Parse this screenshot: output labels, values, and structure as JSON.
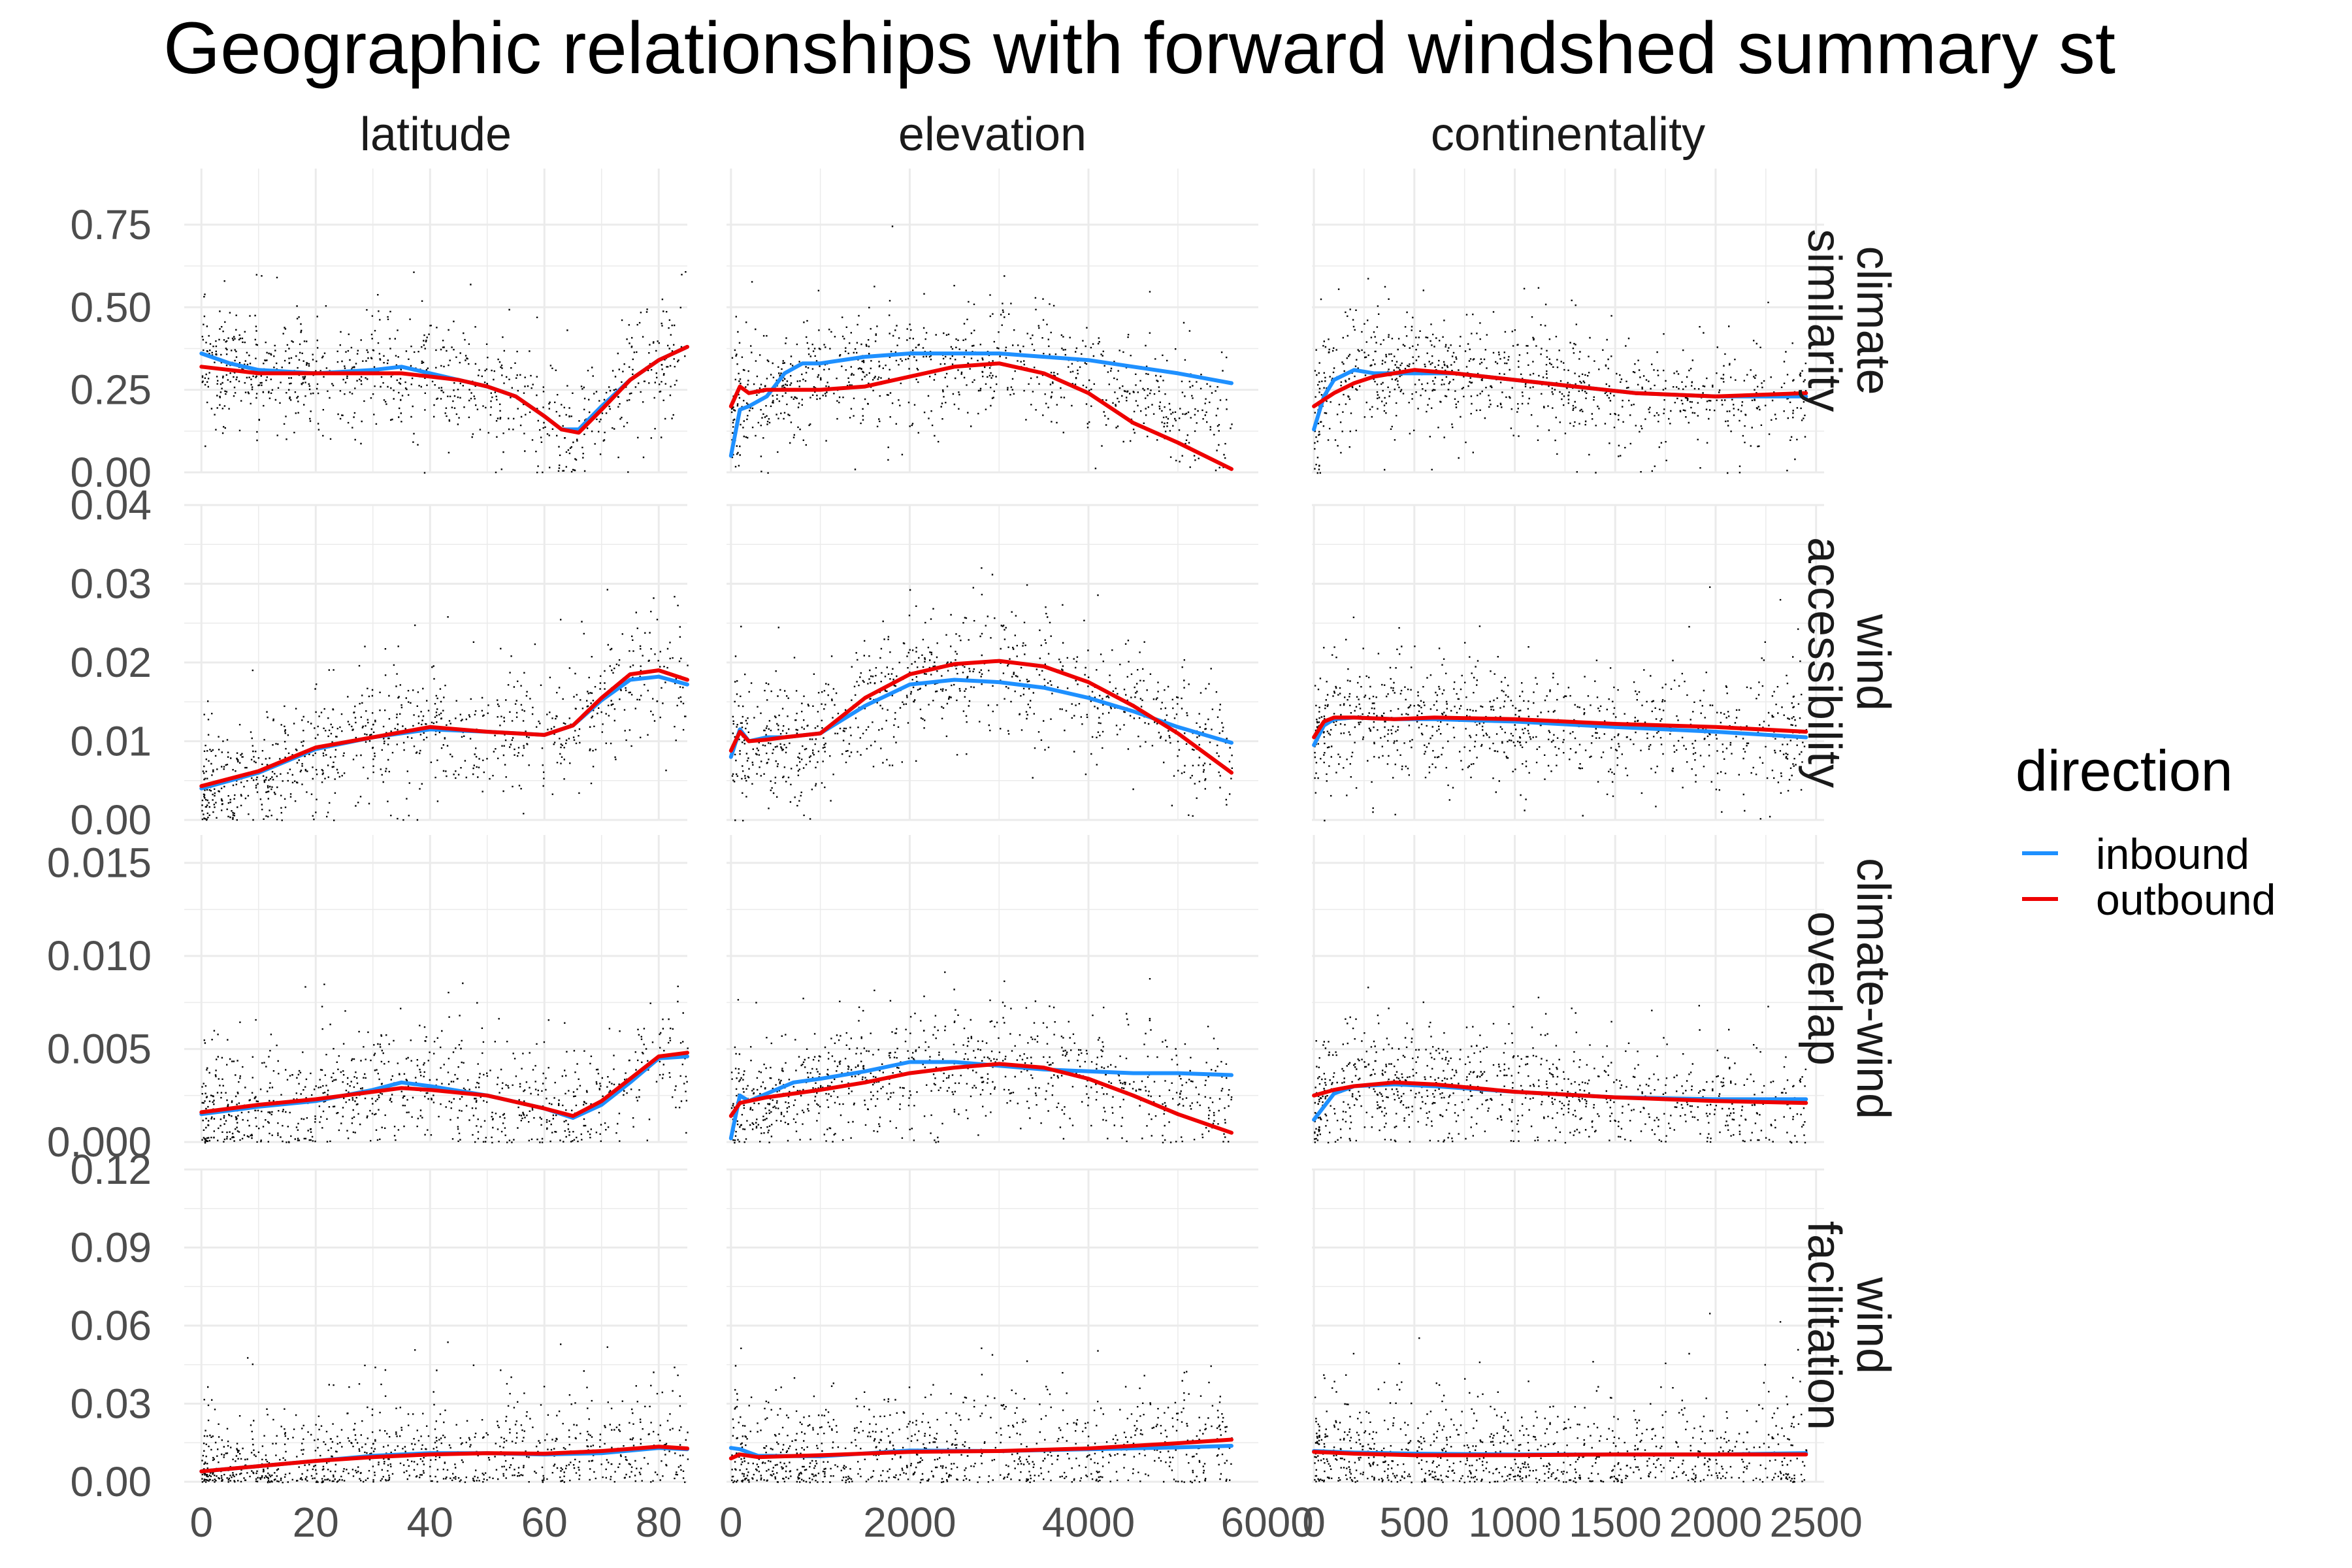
{
  "title": "Geographic relationships with forward windshed summary st",
  "legend": {
    "title": "direction",
    "items": [
      {
        "label": "inbound",
        "color": "#1E90FF"
      },
      {
        "label": "outbound",
        "color": "#EE0000"
      }
    ]
  },
  "columns": [
    {
      "label": "latitude",
      "xlim": [
        -3,
        85
      ],
      "ticks": [
        0,
        20,
        40,
        60,
        80
      ],
      "tick_labels": [
        "0",
        "20",
        "40",
        "60",
        "80"
      ]
    },
    {
      "label": "elevation",
      "xlim": [
        -50,
        5900
      ],
      "ticks": [
        0,
        2000,
        4000,
        6000
      ],
      "tick_labels": [
        "0",
        "2000",
        "4000",
        "6000"
      ]
    },
    {
      "label": "continentality",
      "xlim": [
        -10,
        2540
      ],
      "ticks": [
        0,
        500,
        1000,
        1500,
        2000,
        2500
      ],
      "tick_labels": [
        "0",
        "500",
        "1000",
        "1500",
        "2000",
        "2500"
      ]
    }
  ],
  "rows": [
    {
      "label_lines": [
        "climate",
        "similarity"
      ],
      "ylim": [
        0,
        0.92
      ],
      "ticks": [
        0,
        0.25,
        0.5,
        0.75
      ],
      "tick_labels": [
        "0.00",
        "0.25",
        "0.50",
        "0.75"
      ]
    },
    {
      "label_lines": [
        "wind",
        "accessibility"
      ],
      "ylim": [
        0,
        0.04
      ],
      "ticks": [
        0,
        0.01,
        0.02,
        0.03,
        0.04
      ],
      "tick_labels": [
        "0.00",
        "0.01",
        "0.02",
        "0.03",
        "0.04"
      ]
    },
    {
      "label_lines": [
        "climate-wind",
        "overlap"
      ],
      "ylim": [
        0,
        0.0165
      ],
      "ticks": [
        0,
        0.005,
        0.01,
        0.015
      ],
      "tick_labels": [
        "0.000",
        "0.005",
        "0.010",
        "0.015"
      ]
    },
    {
      "label_lines": [
        "wind",
        "facilitation"
      ],
      "ylim": [
        0,
        0.12
      ],
      "ticks": [
        0,
        0.03,
        0.06,
        0.09,
        0.12
      ],
      "tick_labels": [
        "0.00",
        "0.03",
        "0.06",
        "0.09",
        "0.12"
      ]
    }
  ],
  "chart_data": {
    "type": "scatter",
    "title": "Geographic relationships with forward windshed summary st",
    "grid": true,
    "legend_position": "right",
    "series_names": [
      "inbound",
      "outbound"
    ],
    "panels": [
      {
        "row": "climate similarity",
        "col": "latitude",
        "x": [
          0,
          5,
          10,
          20,
          30,
          35,
          40,
          45,
          50,
          55,
          60,
          63,
          66,
          70,
          75,
          80,
          85
        ],
        "inbound": [
          0.36,
          0.33,
          0.31,
          0.3,
          0.31,
          0.32,
          0.3,
          0.28,
          0.26,
          0.23,
          0.17,
          0.13,
          0.13,
          0.2,
          0.28,
          0.34,
          0.38
        ],
        "outbound": [
          0.32,
          0.31,
          0.3,
          0.3,
          0.3,
          0.3,
          0.29,
          0.28,
          0.26,
          0.23,
          0.17,
          0.13,
          0.12,
          0.19,
          0.28,
          0.34,
          0.38
        ]
      },
      {
        "row": "climate similarity",
        "col": "elevation",
        "x": [
          0,
          100,
          200,
          400,
          600,
          800,
          1000,
          1500,
          2000,
          2500,
          3000,
          3500,
          4000,
          4500,
          5000,
          5600
        ],
        "inbound": [
          0.05,
          0.19,
          0.2,
          0.23,
          0.3,
          0.33,
          0.33,
          0.35,
          0.36,
          0.36,
          0.36,
          0.35,
          0.34,
          0.32,
          0.3,
          0.27
        ],
        "outbound": [
          0.2,
          0.26,
          0.24,
          0.25,
          0.25,
          0.25,
          0.25,
          0.26,
          0.29,
          0.32,
          0.33,
          0.3,
          0.24,
          0.15,
          0.09,
          0.01
        ]
      },
      {
        "row": "climate similarity",
        "col": "continentality",
        "x": [
          0,
          50,
          100,
          200,
          300,
          500,
          700,
          1000,
          1300,
          1600,
          2000,
          2450
        ],
        "inbound": [
          0.13,
          0.23,
          0.28,
          0.31,
          0.3,
          0.3,
          0.3,
          0.28,
          0.26,
          0.24,
          0.23,
          0.23
        ],
        "outbound": [
          0.2,
          0.22,
          0.24,
          0.27,
          0.29,
          0.31,
          0.3,
          0.28,
          0.26,
          0.24,
          0.23,
          0.24
        ]
      },
      {
        "row": "wind accessibility",
        "col": "latitude",
        "x": [
          0,
          10,
          20,
          30,
          40,
          50,
          60,
          65,
          70,
          75,
          80,
          85
        ],
        "inbound": [
          0.004,
          0.006,
          0.009,
          0.0105,
          0.0115,
          0.0112,
          0.0108,
          0.012,
          0.0152,
          0.0178,
          0.0182,
          0.0172
        ],
        "outbound": [
          0.0043,
          0.0062,
          0.0092,
          0.0105,
          0.0118,
          0.0112,
          0.0108,
          0.012,
          0.0155,
          0.0185,
          0.019,
          0.0178
        ]
      },
      {
        "row": "wind accessibility",
        "col": "elevation",
        "x": [
          0,
          100,
          200,
          400,
          600,
          1000,
          1500,
          2000,
          2500,
          3000,
          3500,
          4000,
          4500,
          5000,
          5600
        ],
        "inbound": [
          0.008,
          0.0115,
          0.01,
          0.0105,
          0.0105,
          0.011,
          0.0145,
          0.0172,
          0.0178,
          0.0175,
          0.0168,
          0.0155,
          0.0138,
          0.0118,
          0.0098
        ],
        "outbound": [
          0.0088,
          0.0112,
          0.01,
          0.0102,
          0.0105,
          0.011,
          0.0155,
          0.0185,
          0.0198,
          0.0202,
          0.0195,
          0.0175,
          0.0145,
          0.011,
          0.006
        ]
      },
      {
        "row": "wind accessibility",
        "col": "continentality",
        "x": [
          0,
          50,
          100,
          200,
          400,
          600,
          1000,
          1500,
          2000,
          2450
        ],
        "inbound": [
          0.0095,
          0.012,
          0.0128,
          0.013,
          0.0128,
          0.0128,
          0.0125,
          0.0118,
          0.0112,
          0.0105
        ],
        "outbound": [
          0.0105,
          0.0125,
          0.013,
          0.013,
          0.0128,
          0.013,
          0.0128,
          0.0122,
          0.0118,
          0.0112
        ]
      },
      {
        "row": "climate-wind overlap",
        "col": "latitude",
        "x": [
          0,
          10,
          20,
          30,
          35,
          40,
          50,
          60,
          65,
          70,
          75,
          80,
          85
        ],
        "inbound": [
          0.0015,
          0.0019,
          0.0022,
          0.0028,
          0.0032,
          0.003,
          0.0025,
          0.0018,
          0.0013,
          0.002,
          0.0032,
          0.0045,
          0.0046
        ],
        "outbound": [
          0.0016,
          0.002,
          0.0023,
          0.0027,
          0.0029,
          0.0028,
          0.0025,
          0.0018,
          0.0014,
          0.0022,
          0.0034,
          0.0046,
          0.0048
        ]
      },
      {
        "row": "climate-wind overlap",
        "col": "elevation",
        "x": [
          0,
          100,
          200,
          400,
          700,
          1000,
          1500,
          2000,
          2500,
          3000,
          3500,
          4000,
          4500,
          5000,
          5600
        ],
        "inbound": [
          0.0002,
          0.0025,
          0.0022,
          0.0026,
          0.0032,
          0.0034,
          0.0038,
          0.0043,
          0.0043,
          0.0041,
          0.0039,
          0.0038,
          0.0037,
          0.0037,
          0.0036
        ],
        "outbound": [
          0.0014,
          0.0021,
          0.0022,
          0.0024,
          0.0026,
          0.0028,
          0.0032,
          0.0037,
          0.004,
          0.0042,
          0.004,
          0.0034,
          0.0025,
          0.0015,
          0.0005
        ]
      },
      {
        "row": "climate-wind overlap",
        "col": "continentality",
        "x": [
          0,
          100,
          200,
          400,
          600,
          1000,
          1500,
          2000,
          2450
        ],
        "inbound": [
          0.0012,
          0.0026,
          0.003,
          0.0031,
          0.003,
          0.0027,
          0.0024,
          0.0023,
          0.0023
        ],
        "outbound": [
          0.0025,
          0.0028,
          0.003,
          0.0032,
          0.0031,
          0.0027,
          0.0024,
          0.0022,
          0.0021
        ]
      },
      {
        "row": "wind facilitation",
        "col": "latitude",
        "x": [
          0,
          10,
          20,
          30,
          40,
          50,
          60,
          70,
          80,
          85
        ],
        "inbound": [
          0.004,
          0.006,
          0.008,
          0.01,
          0.011,
          0.011,
          0.0105,
          0.011,
          0.013,
          0.0125
        ],
        "outbound": [
          0.004,
          0.006,
          0.008,
          0.0095,
          0.0105,
          0.011,
          0.0108,
          0.0118,
          0.0135,
          0.0128
        ]
      },
      {
        "row": "wind facilitation",
        "col": "elevation",
        "x": [
          0,
          100,
          300,
          1000,
          2000,
          3000,
          4000,
          5000,
          5600
        ],
        "inbound": [
          0.013,
          0.0125,
          0.01,
          0.0098,
          0.012,
          0.0118,
          0.0125,
          0.0132,
          0.0138
        ],
        "outbound": [
          0.009,
          0.0105,
          0.0095,
          0.0102,
          0.0115,
          0.0118,
          0.0128,
          0.0148,
          0.0162
        ]
      },
      {
        "row": "wind facilitation",
        "col": "continentality",
        "x": [
          0,
          200,
          500,
          1000,
          1500,
          2000,
          2450
        ],
        "inbound": [
          0.0118,
          0.0112,
          0.0108,
          0.0105,
          0.0105,
          0.0105,
          0.011
        ],
        "outbound": [
          0.0115,
          0.0108,
          0.0102,
          0.0102,
          0.0105,
          0.0105,
          0.0105
        ]
      }
    ]
  }
}
